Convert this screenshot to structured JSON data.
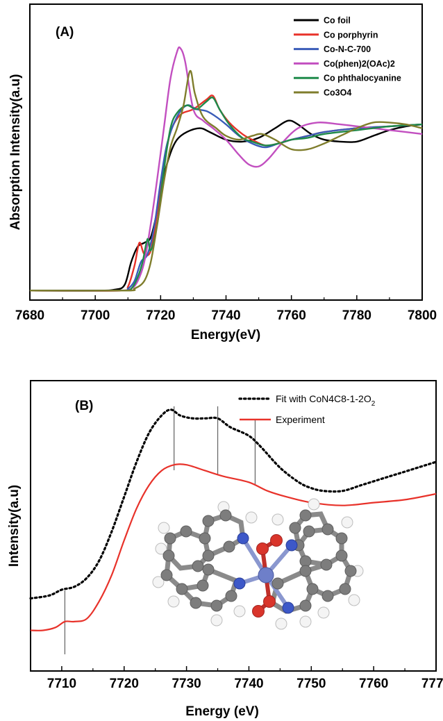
{
  "chart_data": [
    {
      "type": "line",
      "panel_label": "(A)",
      "xlabel": "Energy(eV)",
      "ylabel": "Absorption Intensity(a.u)",
      "xlim": [
        7680,
        7800
      ],
      "ylim": [
        0,
        1.55
      ],
      "xticks": [
        "7680",
        "7700",
        "7720",
        "7740",
        "7760",
        "7780",
        "7800"
      ],
      "legend_position": "top-right",
      "series": [
        {
          "name": "Co foil",
          "color": "#000000",
          "points": [
            [
              7680,
              0.05
            ],
            [
              7700,
              0.05
            ],
            [
              7706,
              0.055
            ],
            [
              7709,
              0.08
            ],
            [
              7711,
              0.2
            ],
            [
              7713,
              0.28
            ],
            [
              7715,
              0.3
            ],
            [
              7717,
              0.33
            ],
            [
              7719,
              0.47
            ],
            [
              7721,
              0.65
            ],
            [
              7723,
              0.77
            ],
            [
              7725,
              0.84
            ],
            [
              7728,
              0.88
            ],
            [
              7732,
              0.9
            ],
            [
              7735,
              0.88
            ],
            [
              7740,
              0.84
            ],
            [
              7745,
              0.83
            ],
            [
              7750,
              0.85
            ],
            [
              7755,
              0.9
            ],
            [
              7759,
              0.94
            ],
            [
              7762,
              0.92
            ],
            [
              7766,
              0.87
            ],
            [
              7770,
              0.84
            ],
            [
              7775,
              0.83
            ],
            [
              7780,
              0.83
            ],
            [
              7785,
              0.86
            ],
            [
              7790,
              0.89
            ],
            [
              7795,
              0.91
            ],
            [
              7800,
              0.92
            ]
          ]
        },
        {
          "name": "Co porphyrin",
          "color": "#e8322a",
          "points": [
            [
              7680,
              0.05
            ],
            [
              7708,
              0.05
            ],
            [
              7710,
              0.07
            ],
            [
              7712,
              0.18
            ],
            [
              7713.5,
              0.3
            ],
            [
              7715,
              0.24
            ],
            [
              7717,
              0.26
            ],
            [
              7719,
              0.46
            ],
            [
              7721,
              0.7
            ],
            [
              7723,
              0.88
            ],
            [
              7726,
              0.97
            ],
            [
              7730,
              1.0
            ],
            [
              7734,
              1.05
            ],
            [
              7736,
              1.07
            ],
            [
              7738,
              1.0
            ],
            [
              7741,
              0.93
            ],
            [
              7745,
              0.87
            ],
            [
              7748,
              0.84
            ],
            [
              7752,
              0.81
            ],
            [
              7756,
              0.82
            ],
            [
              7760,
              0.84
            ],
            [
              7765,
              0.86
            ],
            [
              7770,
              0.88
            ],
            [
              7780,
              0.9
            ],
            [
              7790,
              0.91
            ],
            [
              7800,
              0.92
            ]
          ]
        },
        {
          "name": "Co-N-C-700",
          "color": "#3a5cb8",
          "points": [
            [
              7680,
              0.05
            ],
            [
              7708,
              0.05
            ],
            [
              7710,
              0.06
            ],
            [
              7712,
              0.1
            ],
            [
              7714,
              0.2
            ],
            [
              7716,
              0.24
            ],
            [
              7718,
              0.38
            ],
            [
              7720,
              0.62
            ],
            [
              7722,
              0.82
            ],
            [
              7725,
              0.96
            ],
            [
              7728,
              1.02
            ],
            [
              7731,
              1.0
            ],
            [
              7734,
              0.99
            ],
            [
              7737,
              0.96
            ],
            [
              7740,
              0.92
            ],
            [
              7744,
              0.86
            ],
            [
              7748,
              0.82
            ],
            [
              7752,
              0.8
            ],
            [
              7756,
              0.82
            ],
            [
              7760,
              0.84
            ],
            [
              7765,
              0.86
            ],
            [
              7770,
              0.88
            ],
            [
              7780,
              0.9
            ],
            [
              7790,
              0.91
            ],
            [
              7800,
              0.92
            ]
          ]
        },
        {
          "name": "Co(phen)2(OAc)2",
          "color": "#c24fc0",
          "points": [
            [
              7680,
              0.05
            ],
            [
              7708,
              0.05
            ],
            [
              7711,
              0.06
            ],
            [
              7713,
              0.1
            ],
            [
              7715,
              0.2
            ],
            [
              7717,
              0.4
            ],
            [
              7719,
              0.64
            ],
            [
              7721,
              0.9
            ],
            [
              7723,
              1.16
            ],
            [
              7725,
              1.3
            ],
            [
              7726,
              1.32
            ],
            [
              7727.5,
              1.25
            ],
            [
              7730,
              1.0
            ],
            [
              7733,
              0.94
            ],
            [
              7736,
              0.9
            ],
            [
              7740,
              0.84
            ],
            [
              7744,
              0.76
            ],
            [
              7747,
              0.71
            ],
            [
              7750,
              0.7
            ],
            [
              7753,
              0.74
            ],
            [
              7757,
              0.82
            ],
            [
              7762,
              0.9
            ],
            [
              7768,
              0.93
            ],
            [
              7775,
              0.92
            ],
            [
              7785,
              0.9
            ],
            [
              7795,
              0.88
            ],
            [
              7800,
              0.87
            ]
          ]
        },
        {
          "name": "Co phthalocyanine",
          "color": "#1e8a4a",
          "points": [
            [
              7680,
              0.05
            ],
            [
              7708,
              0.05
            ],
            [
              7711,
              0.06
            ],
            [
              7713,
              0.12
            ],
            [
              7714.5,
              0.2
            ],
            [
              7716,
              0.32
            ],
            [
              7717,
              0.26
            ],
            [
              7719,
              0.4
            ],
            [
              7721,
              0.68
            ],
            [
              7723,
              0.9
            ],
            [
              7725,
              0.98
            ],
            [
              7728,
              1.02
            ],
            [
              7731,
              1.0
            ],
            [
              7734,
              1.04
            ],
            [
              7736,
              1.06
            ],
            [
              7738,
              1.0
            ],
            [
              7741,
              0.92
            ],
            [
              7745,
              0.85
            ],
            [
              7748,
              0.83
            ],
            [
              7752,
              0.81
            ],
            [
              7756,
              0.82
            ],
            [
              7760,
              0.84
            ],
            [
              7765,
              0.85
            ],
            [
              7770,
              0.87
            ],
            [
              7780,
              0.89
            ],
            [
              7790,
              0.91
            ],
            [
              7800,
              0.92
            ]
          ]
        },
        {
          "name": "Co3O4",
          "color": "#7f7d2c",
          "points": [
            [
              7680,
              0.05
            ],
            [
              7709,
              0.05
            ],
            [
              7712,
              0.06
            ],
            [
              7715,
              0.1
            ],
            [
              7717,
              0.2
            ],
            [
              7719,
              0.4
            ],
            [
              7721,
              0.62
            ],
            [
              7723,
              0.8
            ],
            [
              7725,
              0.9
            ],
            [
              7727,
              1.02
            ],
            [
              7729,
              1.2
            ],
            [
              7730.5,
              1.08
            ],
            [
              7733,
              0.96
            ],
            [
              7737,
              0.9
            ],
            [
              7740,
              0.86
            ],
            [
              7744,
              0.84
            ],
            [
              7748,
              0.86
            ],
            [
              7751,
              0.87
            ],
            [
              7755,
              0.84
            ],
            [
              7760,
              0.79
            ],
            [
              7765,
              0.79
            ],
            [
              7770,
              0.82
            ],
            [
              7775,
              0.86
            ],
            [
              7780,
              0.9
            ],
            [
              7785,
              0.93
            ],
            [
              7790,
              0.93
            ],
            [
              7795,
              0.92
            ],
            [
              7800,
              0.9
            ]
          ]
        }
      ]
    },
    {
      "type": "line",
      "panel_label": "(B)",
      "xlabel": "Energy (eV)",
      "ylabel": "Intensity(a.u)",
      "xlim": [
        7705,
        7770
      ],
      "ylim": [
        0,
        1.0
      ],
      "xticks": [
        "7710",
        "7720",
        "7730",
        "7740",
        "7750",
        "7760",
        "7770"
      ],
      "legend_position": "top-right",
      "series": [
        {
          "name": "Fit with CoN4C8-1-2O",
          "name_subscript": "2",
          "style": "dotted",
          "color": "#000000",
          "points": [
            [
              7705,
              0.25
            ],
            [
              7708,
              0.26
            ],
            [
              7710,
              0.28
            ],
            [
              7712,
              0.29
            ],
            [
              7714,
              0.32
            ],
            [
              7716,
              0.38
            ],
            [
              7718,
              0.48
            ],
            [
              7720,
              0.6
            ],
            [
              7722,
              0.72
            ],
            [
              7724,
              0.82
            ],
            [
              7726,
              0.88
            ],
            [
              7727.5,
              0.9
            ],
            [
              7729,
              0.88
            ],
            [
              7731,
              0.87
            ],
            [
              7733,
              0.87
            ],
            [
              7735,
              0.87
            ],
            [
              7737,
              0.84
            ],
            [
              7740,
              0.81
            ],
            [
              7742,
              0.77
            ],
            [
              7745,
              0.7
            ],
            [
              7748,
              0.65
            ],
            [
              7750,
              0.63
            ],
            [
              7752,
              0.62
            ],
            [
              7755,
              0.62
            ],
            [
              7758,
              0.64
            ],
            [
              7761,
              0.66
            ],
            [
              7764,
              0.68
            ],
            [
              7767,
              0.7
            ],
            [
              7770,
              0.72
            ]
          ]
        },
        {
          "name": "Experiment",
          "style": "solid",
          "color": "#e8322a",
          "points": [
            [
              7705,
              0.14
            ],
            [
              7707,
              0.14
            ],
            [
              7709,
              0.15
            ],
            [
              7710.5,
              0.17
            ],
            [
              7712,
              0.17
            ],
            [
              7714,
              0.18
            ],
            [
              7716,
              0.24
            ],
            [
              7718,
              0.33
            ],
            [
              7720,
              0.45
            ],
            [
              7722,
              0.56
            ],
            [
              7724,
              0.64
            ],
            [
              7726,
              0.69
            ],
            [
              7728,
              0.71
            ],
            [
              7730,
              0.71
            ],
            [
              7733,
              0.69
            ],
            [
              7736,
              0.67
            ],
            [
              7740,
              0.65
            ],
            [
              7743,
              0.62
            ],
            [
              7746,
              0.6
            ],
            [
              7750,
              0.58
            ],
            [
              7755,
              0.57
            ],
            [
              7760,
              0.58
            ],
            [
              7765,
              0.59
            ],
            [
              7770,
              0.61
            ]
          ]
        }
      ],
      "marker_lines": [
        7710.5,
        7728,
        7735,
        7741
      ]
    }
  ]
}
